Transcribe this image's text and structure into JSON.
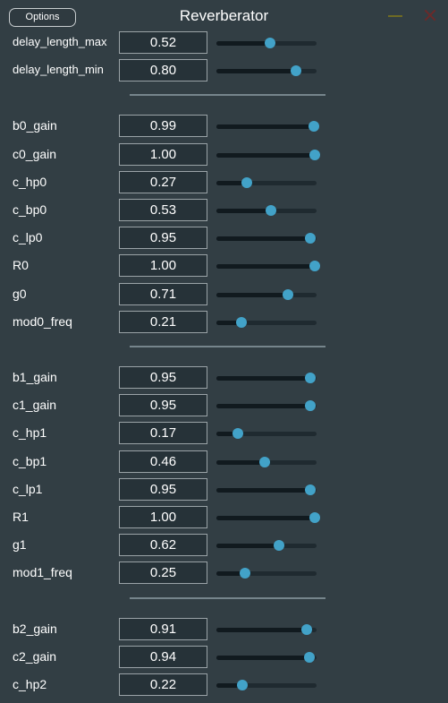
{
  "titlebar": {
    "options_label": "Options",
    "title": "Reverberator"
  },
  "colors": {
    "background": "#323e44",
    "accent": "#42a2c8"
  },
  "groups": [
    {
      "params": [
        {
          "label": "delay_length_max",
          "value": "0.52",
          "level": 0.52
        },
        {
          "label": "delay_length_min",
          "value": "0.80",
          "level": 0.8
        }
      ]
    },
    {
      "params": [
        {
          "label": "b0_gain",
          "value": "0.99",
          "level": 0.99
        },
        {
          "label": "c0_gain",
          "value": "1.00",
          "level": 1.0
        },
        {
          "label": "c_hp0",
          "value": "0.27",
          "level": 0.27
        },
        {
          "label": "c_bp0",
          "value": "0.53",
          "level": 0.53
        },
        {
          "label": "c_lp0",
          "value": "0.95",
          "level": 0.95
        },
        {
          "label": "R0",
          "value": "1.00",
          "level": 1.0
        },
        {
          "label": "g0",
          "value": "0.71",
          "level": 0.71
        },
        {
          "label": "mod0_freq",
          "value": "0.21",
          "level": 0.21
        }
      ]
    },
    {
      "params": [
        {
          "label": "b1_gain",
          "value": "0.95",
          "level": 0.95
        },
        {
          "label": "c1_gain",
          "value": "0.95",
          "level": 0.95
        },
        {
          "label": "c_hp1",
          "value": "0.17",
          "level": 0.17
        },
        {
          "label": "c_bp1",
          "value": "0.46",
          "level": 0.46
        },
        {
          "label": "c_lp1",
          "value": "0.95",
          "level": 0.95
        },
        {
          "label": "R1",
          "value": "1.00",
          "level": 1.0
        },
        {
          "label": "g1",
          "value": "0.62",
          "level": 0.62
        },
        {
          "label": "mod1_freq",
          "value": "0.25",
          "level": 0.25
        }
      ]
    },
    {
      "params": [
        {
          "label": "b2_gain",
          "value": "0.91",
          "level": 0.91
        },
        {
          "label": "c2_gain",
          "value": "0.94",
          "level": 0.94
        },
        {
          "label": "c_hp2",
          "value": "0.22",
          "level": 0.22
        }
      ]
    }
  ]
}
